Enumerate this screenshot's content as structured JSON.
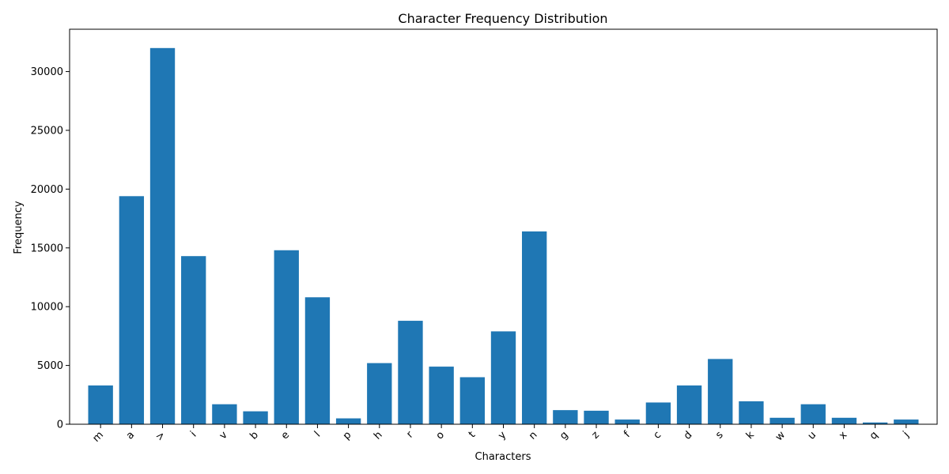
{
  "chart_data": {
    "type": "bar",
    "title": "Character Frequency Distribution",
    "xlabel": "Characters",
    "ylabel": "Frequency",
    "categories": [
      "m",
      "a",
      ">",
      "i",
      "v",
      "b",
      "e",
      "l",
      "p",
      "h",
      "r",
      "o",
      "t",
      "y",
      "n",
      "g",
      "z",
      "f",
      "c",
      "d",
      "s",
      "k",
      "w",
      "u",
      "x",
      "q",
      "j"
    ],
    "values": [
      3300,
      19400,
      32000,
      14300,
      1700,
      1100,
      14800,
      10800,
      500,
      5200,
      8800,
      4900,
      4000,
      7900,
      16400,
      1200,
      1150,
      400,
      1850,
      3300,
      5550,
      1950,
      550,
      1700,
      550,
      150,
      400
    ],
    "ylim": [
      0,
      33600
    ],
    "yticks": [
      0,
      5000,
      10000,
      15000,
      20000,
      25000,
      30000
    ],
    "grid": false,
    "bar_color": "#1f77b4"
  }
}
